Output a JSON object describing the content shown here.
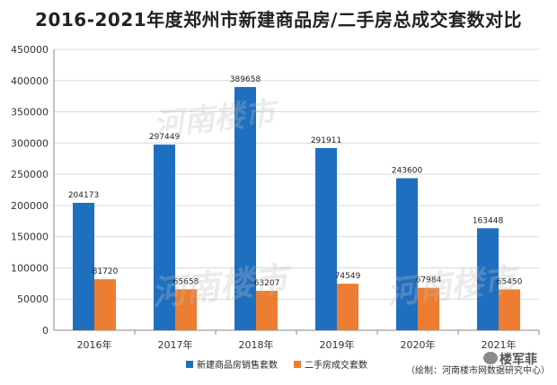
{
  "chart_data": {
    "type": "bar",
    "title": "2016-2021年度郑州市新建商品房/二手房总成交套数对比",
    "categories": [
      "2016年",
      "2017年",
      "2018年",
      "2019年",
      "2020年",
      "2021年"
    ],
    "series": [
      {
        "name": "新建商品房销售套数",
        "color": "#1f6fc0",
        "values": [
          204173,
          297449,
          389658,
          291911,
          243600,
          163448
        ]
      },
      {
        "name": "二手房成交套数",
        "color": "#ed7d31",
        "values": [
          81720,
          65658,
          63207,
          74549,
          67984,
          65450
        ]
      }
    ],
    "ylim": [
      0,
      450000
    ],
    "yticks": [
      0,
      50000,
      100000,
      150000,
      200000,
      250000,
      300000,
      350000,
      400000,
      450000
    ],
    "grid": true,
    "legend": "bottom"
  },
  "source_note": "（绘制：河南楼市网数据研究中心）",
  "watermark_text": "河南楼市",
  "author_text": "楼军菲"
}
